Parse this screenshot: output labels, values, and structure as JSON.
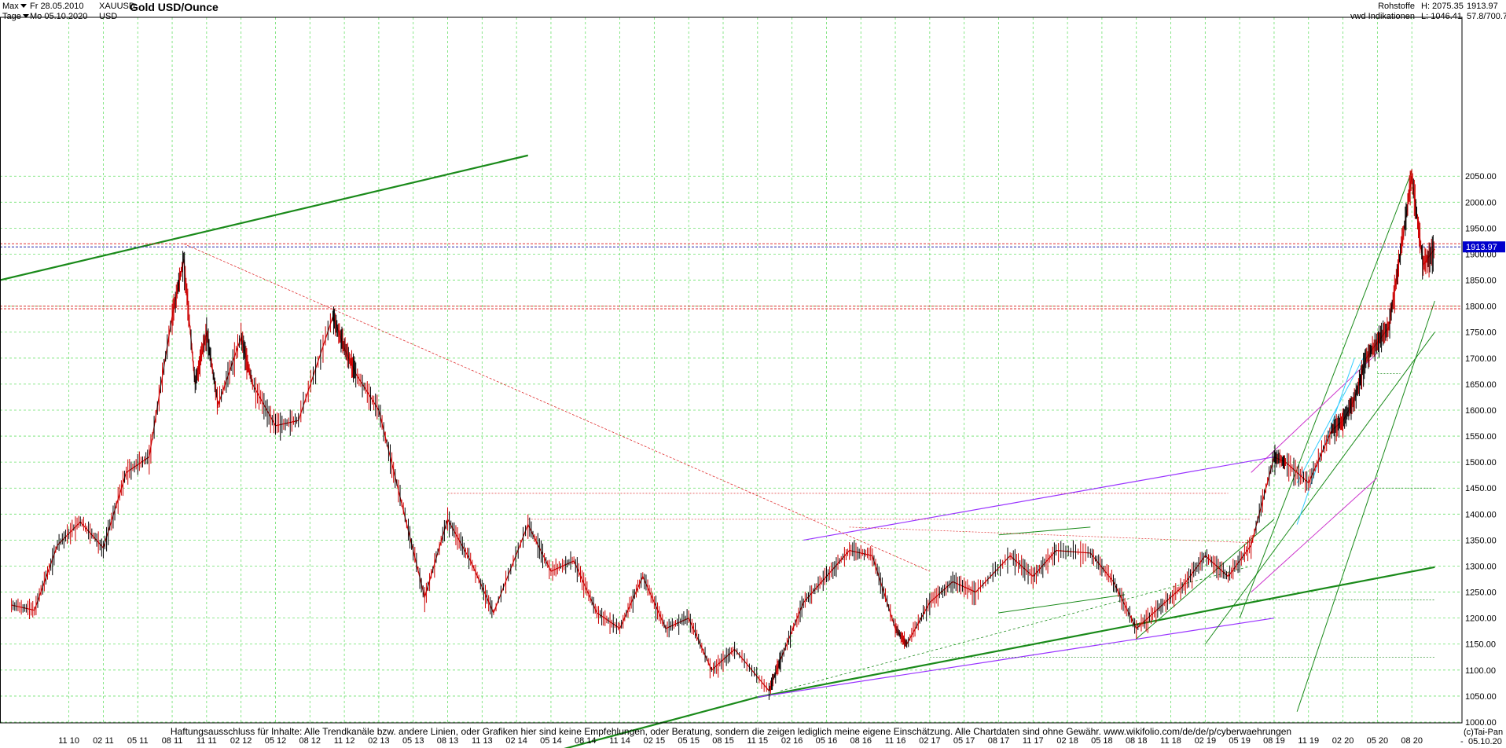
{
  "header": {
    "range_label": "Max",
    "interval_label": "Tage",
    "date_from": "Fr 28.05.2010",
    "date_to": "Mo 05.10.2020",
    "symbol": "XAUUSD",
    "currency": "USD",
    "title": "Gold USD/Ounce",
    "category": "Rohstoffe",
    "source": "vwd Indikationen",
    "high": "H: 2075.35",
    "low": "L: 1046.41",
    "last": "1913.97",
    "ratio": "57.8/700.7"
  },
  "footer": {
    "disclaimer": "Haftungsausschluss für Inhalte: Alle Trendkanäle bzw. andere Linien, oder Grafiken hier sind keine Empfehlungen, oder Beratung, sondern die zeigen lediglich meine eigene Einschätzung. Alle Chartdaten sind ohne Gewähr.  www.wikifolio.com/de/de/p/cyberwaehrungen",
    "copyright": "(c)Tai-Pan",
    "last_date": "05.10.20",
    "dash": "-"
  },
  "colors": {
    "candle_up": "#000000",
    "candle_down": "#cc0000",
    "grid": "#6be06b",
    "trend_green": "#1a8a1a",
    "channel_violet": "#9933ff",
    "channel_magenta": "#cc33cc",
    "channel_cyan": "#33ccff",
    "level_red": "#e03030",
    "level_blue": "#2222aa",
    "price_tag": "#0000cc"
  },
  "chart_data": {
    "type": "line",
    "title": "Gold USD/Ounce",
    "xlabel": "",
    "ylabel": "",
    "ylim": [
      1000,
      2100
    ],
    "grid": true,
    "y_ticks": [
      1000,
      1050,
      1100,
      1150,
      1200,
      1250,
      1300,
      1350,
      1400,
      1450,
      1500,
      1550,
      1600,
      1650,
      1700,
      1750,
      1800,
      1850,
      1900,
      1950,
      2000,
      2050
    ],
    "x_ticks": [
      "11 10",
      "02 11",
      "05 11",
      "08 11",
      "11 11",
      "02 12",
      "05 12",
      "08 12",
      "11 12",
      "02 13",
      "05 13",
      "08 13",
      "11 13",
      "02 14",
      "05 14",
      "08 14",
      "11 14",
      "02 15",
      "05 15",
      "08 15",
      "11 15",
      "02 16",
      "05 16",
      "08 16",
      "11 16",
      "02 17",
      "05 17",
      "08 17",
      "11 17",
      "02 18",
      "05 18",
      "08 18",
      "11 18",
      "02 19",
      "05 19",
      "08 19",
      "11 19",
      "02 20",
      "05 20",
      "08 20"
    ],
    "x": [
      "2010-06",
      "2010-08",
      "2010-10",
      "2010-12",
      "2011-02",
      "2011-04",
      "2011-06",
      "2011-08",
      "2011-09",
      "2011-10",
      "2011-11",
      "2011-12",
      "2012-02",
      "2012-03",
      "2012-05",
      "2012-07",
      "2012-10",
      "2012-11",
      "2012-12",
      "2013-02",
      "2013-04",
      "2013-06",
      "2013-08",
      "2013-10",
      "2013-12",
      "2014-03",
      "2014-05",
      "2014-07",
      "2014-09",
      "2014-11",
      "2015-01",
      "2015-03",
      "2015-05",
      "2015-07",
      "2015-09",
      "2015-12",
      "2016-01",
      "2016-03",
      "2016-05",
      "2016-07",
      "2016-09",
      "2016-11",
      "2016-12",
      "2017-02",
      "2017-04",
      "2017-06",
      "2017-09",
      "2017-11",
      "2018-01",
      "2018-04",
      "2018-06",
      "2018-08",
      "2018-10",
      "2018-12",
      "2019-02",
      "2019-04",
      "2019-06",
      "2019-08",
      "2019-09",
      "2019-11",
      "2020-01",
      "2020-02",
      "2020-03",
      "2020-04",
      "2020-05",
      "2020-06",
      "2020-07",
      "2020-08",
      "2020-09",
      "2020-10"
    ],
    "series": [
      {
        "values": [
          1225,
          1215,
          1340,
          1385,
          1335,
          1480,
          1510,
          1780,
          1890,
          1650,
          1750,
          1610,
          1740,
          1650,
          1570,
          1580,
          1780,
          1720,
          1670,
          1600,
          1420,
          1240,
          1390,
          1310,
          1210,
          1380,
          1290,
          1310,
          1210,
          1180,
          1280,
          1180,
          1200,
          1100,
          1140,
          1060,
          1120,
          1230,
          1280,
          1330,
          1320,
          1180,
          1150,
          1230,
          1270,
          1250,
          1320,
          1280,
          1330,
          1325,
          1270,
          1180,
          1220,
          1260,
          1320,
          1280,
          1340,
          1510,
          1500,
          1460,
          1560,
          1580,
          1620,
          1700,
          1730,
          1760,
          1900,
          2050,
          1880,
          1910
        ]
      }
    ],
    "horizontal_levels": [
      1920,
      1913.97,
      1800,
      1795
    ],
    "price_tag": "1913.97"
  }
}
